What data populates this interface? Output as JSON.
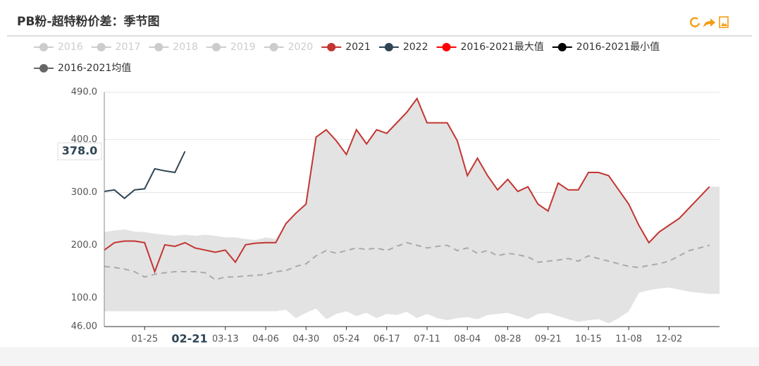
{
  "chart_data": {
    "type": "line",
    "title": "PB粉-超特粉价差：季节图",
    "categories": [
      null,
      null,
      null,
      null,
      "01-25",
      null,
      null,
      null,
      null,
      null,
      null,
      null,
      "03-13",
      null,
      null,
      null,
      "04-06",
      null,
      null,
      null,
      "04-30",
      null,
      null,
      null,
      "05-24",
      null,
      null,
      null,
      "06-17",
      null,
      null,
      null,
      "07-11",
      null,
      null,
      null,
      "08-04",
      null,
      null,
      null,
      "08-28",
      null,
      null,
      null,
      "09-21",
      null,
      null,
      null,
      "10-15",
      null,
      null,
      null,
      "11-08",
      null,
      null,
      null,
      "12-02",
      null,
      null,
      null,
      null
    ],
    "inactive_series": [
      {
        "name": "2016"
      },
      {
        "name": "2017"
      },
      {
        "name": "2018"
      },
      {
        "name": "2019"
      },
      {
        "name": "2020"
      }
    ],
    "series": [
      {
        "name": "2016-2021最大值",
        "color": "#ff0000",
        "style": "band-top",
        "values": [
          225,
          228,
          230,
          226,
          225,
          222,
          220,
          218,
          220,
          218,
          220,
          218,
          215,
          215,
          212,
          210,
          215,
          212,
          241,
          261,
          278,
          405,
          419,
          398,
          372,
          419,
          392,
          419,
          412,
          432,
          452,
          478,
          432,
          432,
          432,
          398,
          332,
          365,
          332,
          305,
          325,
          302,
          311,
          278,
          265,
          318,
          305,
          305,
          338,
          338,
          332,
          305,
          278,
          238,
          205,
          225,
          238,
          251,
          271,
          291,
          311
        ]
      },
      {
        "name": "2016-2021最小值",
        "color": "#000000",
        "style": "band-bottom",
        "values": [
          75,
          75,
          75,
          75,
          75,
          75,
          75,
          75,
          75,
          75,
          75,
          75,
          75,
          75,
          75,
          75,
          75,
          75,
          78,
          62,
          72,
          80,
          60,
          70,
          75,
          66,
          72,
          62,
          70,
          68,
          74,
          62,
          70,
          62,
          58,
          62,
          64,
          60,
          68,
          70,
          72,
          66,
          60,
          70,
          72,
          66,
          60,
          55,
          58,
          60,
          52,
          62,
          75,
          110,
          115,
          118,
          120,
          116,
          112,
          110,
          108
        ]
      },
      {
        "name": "2016-2021均值",
        "color": "#666666",
        "style": "dashed",
        "values": [
          160,
          158,
          155,
          150,
          140,
          145,
          148,
          150,
          150,
          150,
          148,
          135,
          140,
          140,
          142,
          143,
          145,
          150,
          152,
          160,
          165,
          180,
          190,
          185,
          190,
          195,
          192,
          195,
          190,
          198,
          205,
          200,
          195,
          198,
          200,
          190,
          195,
          185,
          190,
          180,
          185,
          182,
          178,
          168,
          170,
          172,
          175,
          170,
          180,
          175,
          170,
          165,
          160,
          158,
          162,
          165,
          170,
          180,
          190,
          195,
          200
        ]
      },
      {
        "name": "2021",
        "color": "#c23531",
        "style": "line",
        "values": [
          191,
          205,
          208,
          208,
          205,
          150,
          201,
          198,
          205,
          195,
          191,
          187,
          191,
          168,
          201,
          204,
          205,
          205,
          241,
          261,
          278,
          405,
          419,
          398,
          372,
          419,
          392,
          419,
          412,
          432,
          452,
          478,
          432,
          432,
          432,
          398,
          332,
          365,
          332,
          305,
          325,
          302,
          311,
          278,
          265,
          318,
          305,
          305,
          338,
          338,
          332,
          305,
          278,
          238,
          205,
          225,
          238,
          251,
          271,
          291,
          311
        ]
      },
      {
        "name": "2022",
        "color": "#2f4554",
        "style": "line",
        "values": [
          302,
          305,
          289,
          305,
          307,
          345,
          341,
          338,
          378,
          null,
          null,
          null,
          null,
          null,
          null,
          null,
          null,
          null,
          null,
          null,
          null,
          null,
          null,
          null,
          null,
          null,
          null,
          null,
          null,
          null,
          null,
          null,
          null,
          null,
          null,
          null,
          null,
          null,
          null,
          null,
          null,
          null,
          null,
          null,
          null,
          null,
          null,
          null,
          null,
          null,
          null,
          null,
          null,
          null,
          null,
          null,
          null,
          null,
          null,
          null,
          null
        ]
      }
    ],
    "legend_order": [
      3,
      4,
      0,
      1,
      2
    ],
    "ylim": [
      46,
      490
    ],
    "yticks": [
      {
        "value": 46,
        "label": "46.00"
      },
      {
        "value": 100,
        "label": "100.0"
      },
      {
        "value": 200,
        "label": "200.0"
      },
      {
        "value": 300,
        "label": "300.0"
      },
      {
        "value": 400,
        "label": "400.0"
      },
      {
        "value": 490,
        "label": "490.0"
      }
    ],
    "grid": true,
    "axis_pointer": {
      "x": "02-21",
      "y": {
        "value": 378,
        "label": "378.0"
      }
    }
  }
}
